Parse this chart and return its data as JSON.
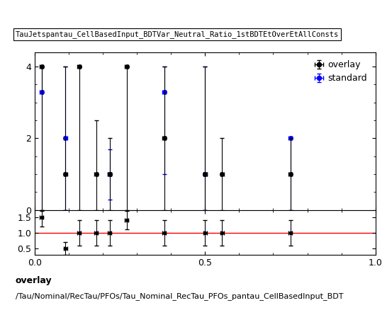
{
  "title": "TauJetspantau_CellBasedInput_BDTVar_Neutral_Ratio_1stBDTEtOverEtAllConsts",
  "footer_line1": "overlay",
  "footer_line2": "/Tau/Nominal/RecTau/PFOs/Tau_Nominal_RecTau_PFOs_pantau_CellBasedInput_BDT",
  "xlim": [
    0,
    1
  ],
  "main_ylim": [
    0,
    4.4
  ],
  "ratio_ylim": [
    0.3,
    1.72
  ],
  "main_yticks": [
    0,
    2,
    4
  ],
  "ratio_yticks": [
    0.5,
    1.0,
    1.5
  ],
  "xticks": [
    0,
    0.5,
    1
  ],
  "overlay_color": "#000000",
  "standard_color": "#0000ff",
  "ratio_line_color": "#ff0000",
  "overlay_x": [
    0.02,
    0.09,
    0.13,
    0.18,
    0.22,
    0.27,
    0.38,
    0.5,
    0.55,
    0.75
  ],
  "overlay_y": [
    4.0,
    1.0,
    4.0,
    1.0,
    1.0,
    4.0,
    2.0,
    1.0,
    1.0,
    1.0
  ],
  "overlay_yerr_lo": [
    4.0,
    1.0,
    4.0,
    1.0,
    1.0,
    4.0,
    2.0,
    1.0,
    1.0,
    1.0
  ],
  "overlay_yerr_hi": [
    0.0,
    3.0,
    0.0,
    1.5,
    1.0,
    0.0,
    2.0,
    3.0,
    1.0,
    1.0
  ],
  "overlay_xerr": [
    0.005,
    0.005,
    0.005,
    0.005,
    0.005,
    0.005,
    0.005,
    0.005,
    0.005,
    0.005
  ],
  "standard_x": [
    0.02,
    0.09,
    0.22,
    0.38,
    0.5,
    0.75
  ],
  "standard_y": [
    3.3,
    2.0,
    1.0,
    3.3,
    1.0,
    2.0
  ],
  "standard_yerr_lo": [
    3.3,
    2.0,
    0.7,
    2.3,
    1.0,
    2.0
  ],
  "standard_yerr_hi": [
    0.7,
    2.0,
    0.7,
    0.7,
    3.0,
    0.0
  ],
  "standard_xerr": [
    0.005,
    0.005,
    0.005,
    0.005,
    0.005,
    0.005
  ],
  "ratio_x": [
    0.02,
    0.09,
    0.13,
    0.18,
    0.22,
    0.27,
    0.38,
    0.5,
    0.55,
    0.75
  ],
  "ratio_y": [
    1.5,
    0.5,
    1.0,
    1.0,
    1.0,
    1.4,
    1.0,
    1.0,
    1.0,
    1.0
  ],
  "ratio_yerr_lo": [
    0.3,
    0.2,
    0.4,
    0.4,
    0.4,
    0.3,
    0.4,
    0.4,
    0.4,
    0.4
  ],
  "ratio_yerr_hi": [
    0.2,
    0.2,
    0.4,
    0.4,
    0.4,
    0.3,
    0.4,
    0.4,
    0.4,
    0.4
  ],
  "ratio_xerr": [
    0.005,
    0.005,
    0.005,
    0.005,
    0.005,
    0.005,
    0.005,
    0.005,
    0.005,
    0.005
  ],
  "marker_size": 4,
  "cap_size": 2,
  "line_width": 0.8,
  "legend_fontsize": 9,
  "tick_fontsize": 9,
  "title_fontsize": 7.5,
  "footer_fontsize": 9
}
